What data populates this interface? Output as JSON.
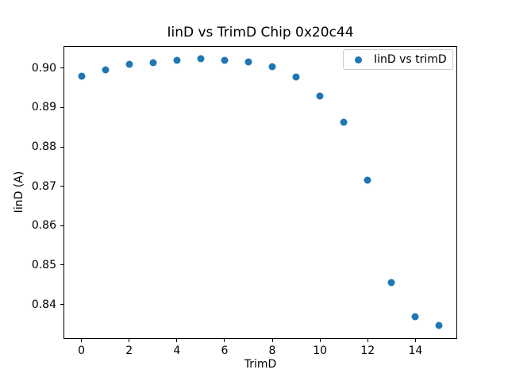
{
  "figure": {
    "background": "#ffffff"
  },
  "chart_data": {
    "type": "scatter",
    "title": "IinD vs TrimD Chip 0x20c44",
    "xlabel": "TrimD",
    "ylabel": "IinD (A)",
    "legend": {
      "label": "IinD vs trimD",
      "position": "upper right"
    },
    "series": [
      {
        "name": "IinD vs trimD",
        "x": [
          0,
          1,
          2,
          3,
          4,
          5,
          6,
          7,
          8,
          9,
          10,
          11,
          12,
          13,
          14,
          15
        ],
        "y": [
          0.898,
          0.8995,
          0.9009,
          0.9014,
          0.9019,
          0.9023,
          0.9019,
          0.9015,
          0.9004,
          0.8978,
          0.893,
          0.8863,
          0.8715,
          0.8456,
          0.8368,
          0.8346
        ],
        "marker": "circle",
        "color": "#1f77b4"
      }
    ],
    "xlim": [
      -0.75,
      15.75
    ],
    "ylim": [
      0.8312,
      0.9057
    ],
    "xticks": [
      0,
      2,
      4,
      6,
      8,
      10,
      12,
      14
    ],
    "yticks": [
      0.84,
      0.85,
      0.86,
      0.87,
      0.88,
      0.89,
      0.9
    ],
    "ytick_decimals": 2,
    "grid": false
  }
}
